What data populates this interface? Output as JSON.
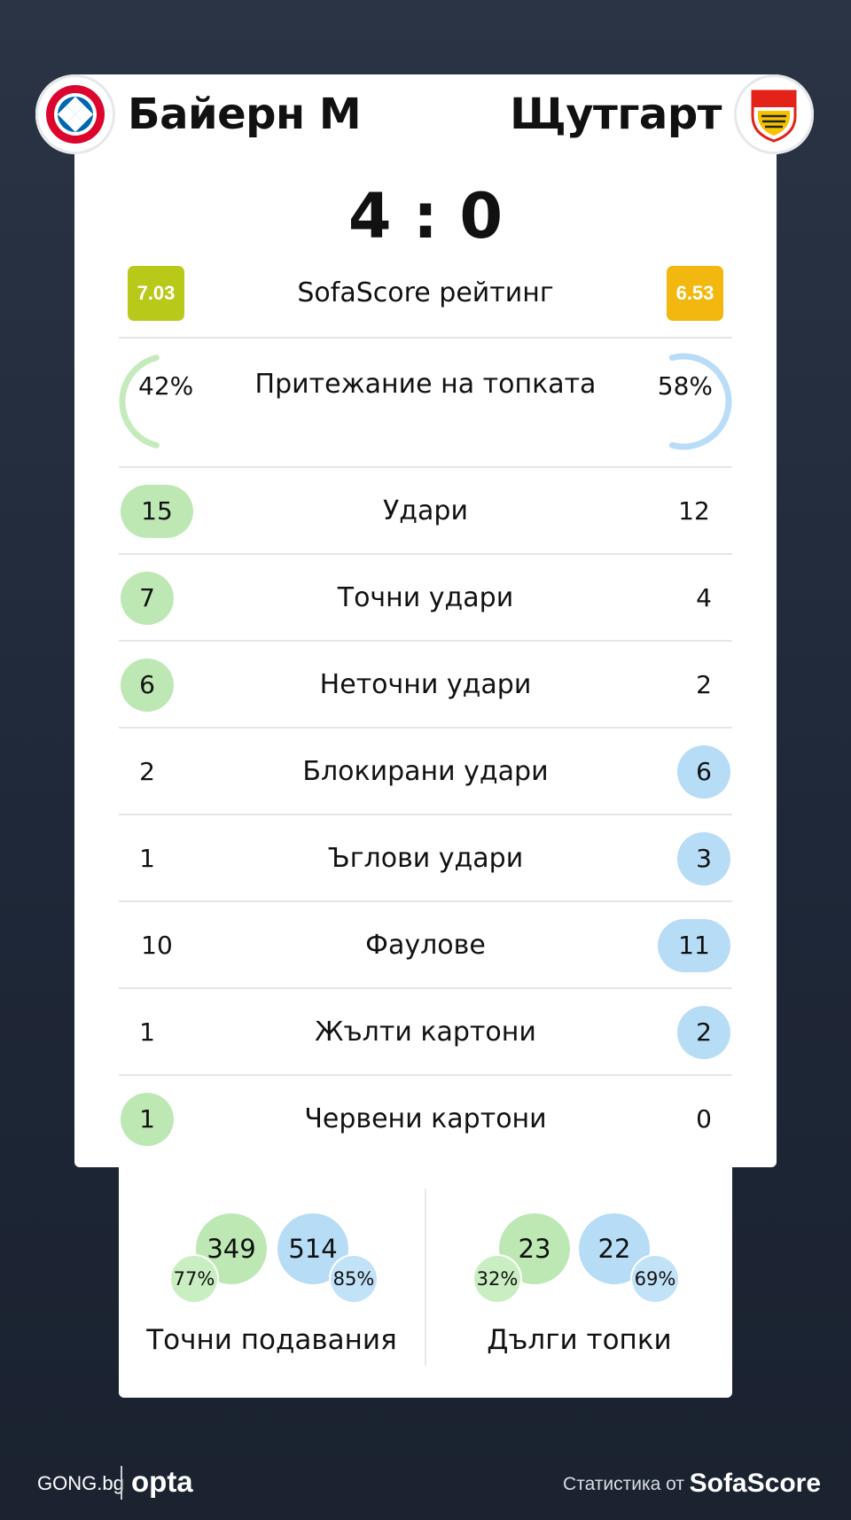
{
  "match": {
    "home_team": "Байерн М",
    "away_team": "Щутгарт",
    "score": "4 : 0"
  },
  "rating": {
    "label": "SofaScore рейтинг",
    "home": "7.03",
    "away": "6.53",
    "home_color": "#b8c91a",
    "away_color": "#f2b80f"
  },
  "possession": {
    "label": "Притежание на топката",
    "home": "42%",
    "away": "58%",
    "home_fraction": 0.42,
    "away_fraction": 0.58
  },
  "stats": [
    {
      "label": "Удари",
      "home": "15",
      "away": "12",
      "highlight": "home"
    },
    {
      "label": "Точни удари",
      "home": "7",
      "away": "4",
      "highlight": "home"
    },
    {
      "label": "Неточни удари",
      "home": "6",
      "away": "2",
      "highlight": "home"
    },
    {
      "label": "Блокирани удари",
      "home": "2",
      "away": "6",
      "highlight": "away"
    },
    {
      "label": "Ъглови удари",
      "home": "1",
      "away": "3",
      "highlight": "away"
    },
    {
      "label": "Фаулове",
      "home": "10",
      "away": "11",
      "highlight": "away"
    },
    {
      "label": "Жълти картони",
      "home": "1",
      "away": "2",
      "highlight": "away"
    },
    {
      "label": "Червени картони",
      "home": "1",
      "away": "0",
      "highlight": "home"
    }
  ],
  "passes": {
    "accurate": {
      "label": "Точни подавания",
      "home": "349",
      "home_pct": "77%",
      "away": "514",
      "away_pct": "85%"
    },
    "long": {
      "label": "Дълги топки",
      "home": "23",
      "home_pct": "32%",
      "away": "22",
      "away_pct": "69%"
    }
  },
  "colors": {
    "home_highlight": "#bde8b4",
    "away_highlight": "#b7dcf6",
    "background": "#222b3b"
  },
  "footer": {
    "gong": "GONG.bg",
    "opta": "opta",
    "stats_by": "Статистика от",
    "sofascore": "SofaScore"
  },
  "icons": {
    "home_logo": "fc-bayern-crest-icon",
    "away_logo": "vfb-stuttgart-crest-icon"
  }
}
